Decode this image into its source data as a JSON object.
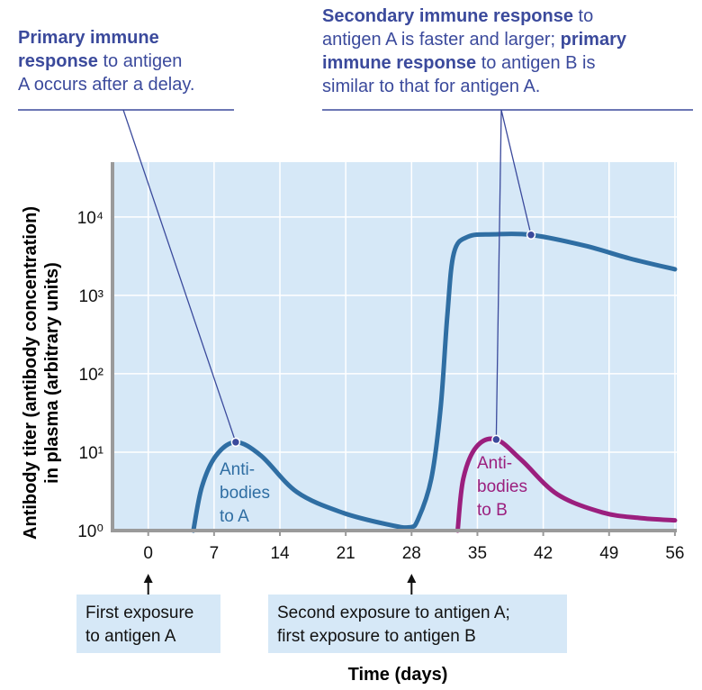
{
  "chart_data": {
    "type": "line",
    "y_title_lines": [
      "Antibody titer (antibody concentration)",
      "in plasma (arbitrary units)"
    ],
    "x_title": "Time (days)",
    "log_y": true,
    "grid": true,
    "background": "#d6e8f7",
    "xlim": [
      -3.8,
      56.2
    ],
    "ylim": [
      1,
      50000
    ],
    "xticks": [
      0,
      7,
      14,
      21,
      28,
      35,
      42,
      49,
      56
    ],
    "yticks": [
      {
        "value": 1,
        "label": "10⁰"
      },
      {
        "value": 10,
        "label": "10¹"
      },
      {
        "value": 100,
        "label": "10²"
      },
      {
        "value": 1000,
        "label": "10³"
      },
      {
        "value": 10000,
        "label": "10⁴"
      }
    ],
    "series": [
      {
        "name_lines": [
          "Anti-",
          "bodies",
          "to A"
        ],
        "color": "#2f6ea3",
        "x": [
          4.8,
          5.7,
          7.2,
          9.3,
          12,
          15.8,
          20.6,
          25.4,
          27.8,
          28.7,
          30.1,
          31.1,
          31.8,
          32.5,
          34,
          36.8,
          40.7,
          46.4,
          51.2,
          56
        ],
        "values": [
          1,
          3.6,
          9,
          13.4,
          9,
          3.1,
          1.7,
          1.2,
          1.1,
          1.4,
          4.6,
          38,
          550,
          3470,
          5600,
          6000,
          5900,
          4300,
          2950,
          2150
        ]
      },
      {
        "name_lines": [
          "Anti-",
          "bodies",
          "to B"
        ],
        "color": "#9b1f7e",
        "x": [
          32.9,
          33.5,
          34.9,
          37,
          39.7,
          43.5,
          48.3,
          52.2,
          56
        ],
        "values": [
          1,
          4.6,
          11.7,
          14.5,
          7.9,
          2.9,
          1.7,
          1.45,
          1.35
        ]
      }
    ],
    "annotations": [
      {
        "lines": [
          [
            {
              "text": "Primary immune",
              "bold": true
            }
          ],
          [
            {
              "text": "response",
              "bold": true
            },
            {
              "text": " to antigen",
              "bold": false
            }
          ],
          [
            {
              "text": "A occurs after a delay.",
              "bold": false
            }
          ]
        ]
      },
      {
        "lines": [
          [
            {
              "text": "Secondary immune response",
              "bold": true
            },
            {
              "text": " to",
              "bold": false
            }
          ],
          [
            {
              "text": "antigen A is faster and larger; ",
              "bold": false
            },
            {
              "text": "primary",
              "bold": true
            }
          ],
          [
            {
              "text": "immune response",
              "bold": true
            },
            {
              "text": " to antigen B is",
              "bold": false
            }
          ],
          [
            {
              "text": "similar to that for antigen A.",
              "bold": false
            }
          ]
        ]
      }
    ],
    "exposures": [
      {
        "x": 0,
        "lines": [
          "First exposure",
          "to antigen A"
        ]
      },
      {
        "x": 28,
        "lines": [
          "Second exposure to antigen A;",
          "first exposure to antigen B"
        ]
      }
    ]
  }
}
